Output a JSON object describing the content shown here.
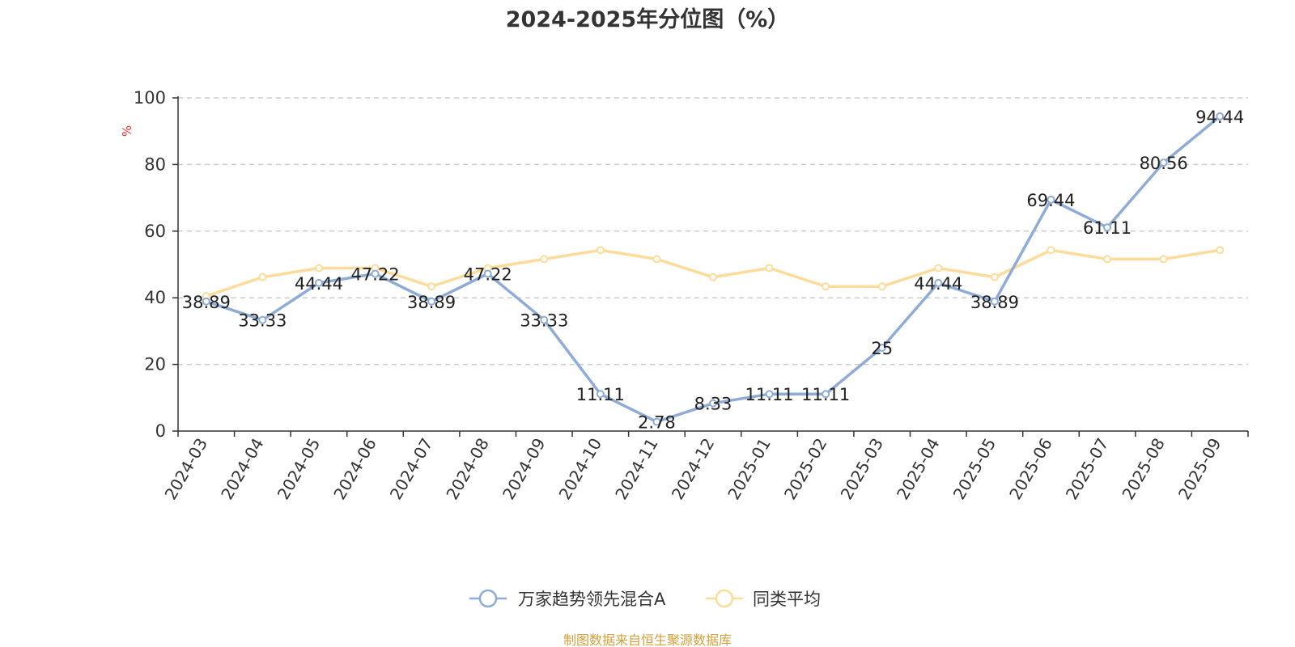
{
  "chart_data": {
    "type": "line",
    "title": "2024-2025年分位图（%）",
    "ylabel": "%",
    "xlabel": "",
    "ylim": [
      0,
      100
    ],
    "yticks": [
      0,
      20,
      40,
      60,
      80,
      100
    ],
    "grid": true,
    "legend_position": "bottom-center",
    "categories": [
      "2024-03",
      "2024-04",
      "2024-05",
      "2024-06",
      "2024-07",
      "2024-08",
      "2024-09",
      "2024-10",
      "2024-11",
      "2024-12",
      "2025-01",
      "2025-02",
      "2025-03",
      "2025-04",
      "2025-05",
      "2025-06",
      "2025-07",
      "2025-08",
      "2025-09"
    ],
    "series": [
      {
        "name": "万家趋势领先混合A",
        "color": "#8eacd6",
        "values": [
          38.89,
          33.33,
          44.44,
          47.22,
          38.89,
          47.22,
          33.33,
          11.11,
          2.78,
          8.33,
          11.11,
          11.11,
          25,
          44.44,
          38.89,
          69.44,
          61.11,
          80.56,
          94.44
        ],
        "labels": [
          "38.89",
          "33.33",
          "44.44",
          "47.22",
          "38.89",
          "47.22",
          "33.33",
          "11.11",
          "2.78",
          "8.33",
          "11.11",
          "11.11",
          "25",
          "44.44",
          "38.89",
          "69.44",
          "61.11",
          "80.56",
          "94.44"
        ]
      },
      {
        "name": "同类平均",
        "color": "#fddc9b",
        "values": [
          40.5,
          46.2,
          48.9,
          48.9,
          43.4,
          48.9,
          51.6,
          54.3,
          51.6,
          46.2,
          48.9,
          43.4,
          43.4,
          48.9,
          46.2,
          54.3,
          51.6,
          51.6,
          54.3
        ]
      }
    ],
    "source": "制图数据来自恒生聚源数据库",
    "colors": {
      "axis": "#333333",
      "grid": "#cccccc",
      "ylabel": "#e8332a",
      "source": "#d4a03b"
    }
  }
}
